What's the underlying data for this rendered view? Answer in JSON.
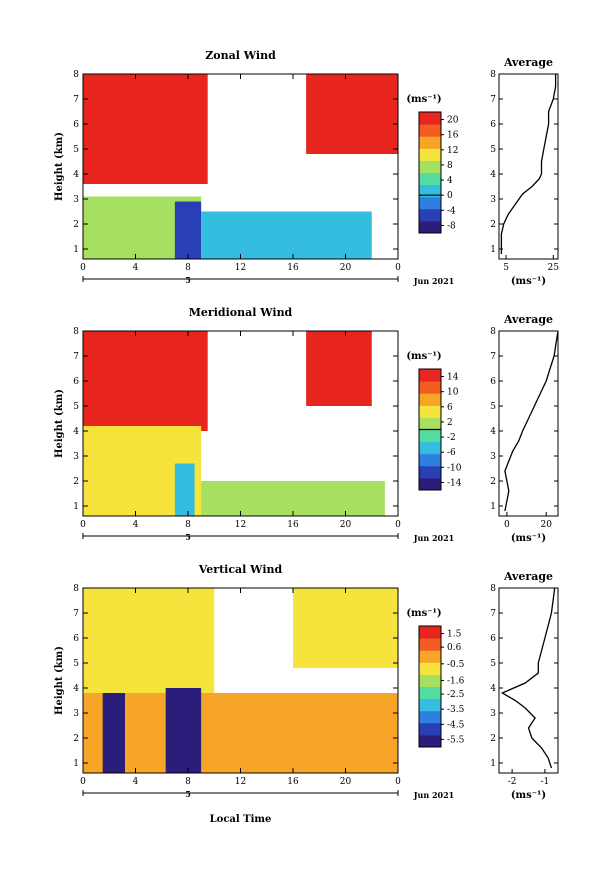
{
  "footer_xlabel": "Local Time",
  "chart_data": [
    {
      "type": "heatmap",
      "title": "Zonal Wind",
      "ylabel": "Height (km)",
      "xlim": [
        0,
        24
      ],
      "ylim": [
        0.6,
        8
      ],
      "x_ticks": [
        "0",
        "4",
        "8",
        "12",
        "16",
        "20",
        "0"
      ],
      "y_ticks": [
        "1",
        "2",
        "3",
        "4",
        "5",
        "6",
        "7",
        "8"
      ],
      "day_label": "5",
      "date_label": "Jun 2021",
      "colorbar": {
        "unit": "(ms⁻¹)",
        "ticks": [
          "20",
          "16",
          "12",
          "8",
          "4",
          "0",
          "-4",
          "-8"
        ],
        "range": [
          -10,
          22
        ],
        "zero_line": 0
      },
      "regions": [
        {
          "hour_start": 0,
          "hour_end": 9.5,
          "height_start": 3.6,
          "height_end": 8,
          "value": 22
        },
        {
          "hour_start": 17,
          "hour_end": 24,
          "height_start": 4.8,
          "height_end": 8,
          "value": 22
        },
        {
          "hour_start": 0,
          "hour_end": 9,
          "height_start": 0.6,
          "height_end": 3.1,
          "value": 6
        },
        {
          "hour_start": 7,
          "hour_end": 9,
          "height_start": 0.6,
          "height_end": 2.9,
          "value": -6
        },
        {
          "hour_start": 9,
          "hour_end": 22,
          "height_start": 0.6,
          "height_end": 2.5,
          "value": 2
        }
      ],
      "profile": {
        "title": "Average",
        "xlabel": "(ms⁻¹)",
        "x_ticks": [
          "5",
          "25"
        ],
        "xlim": [
          2,
          27
        ],
        "heights": [
          0.8,
          1.2,
          1.6,
          2.0,
          2.4,
          2.8,
          3.2,
          3.5,
          3.8,
          4.0,
          4.5,
          5.0,
          5.5,
          6.0,
          6.5,
          7.0,
          7.5,
          8.0
        ],
        "values": [
          3,
          3,
          3,
          4,
          6,
          9,
          12,
          16,
          19,
          20,
          20,
          21,
          22,
          23,
          23,
          25,
          26,
          26
        ]
      }
    },
    {
      "type": "heatmap",
      "title": "Meridional Wind",
      "ylabel": "Height (km)",
      "xlim": [
        0,
        24
      ],
      "ylim": [
        0.6,
        8
      ],
      "x_ticks": [
        "0",
        "4",
        "8",
        "12",
        "16",
        "20",
        "0"
      ],
      "y_ticks": [
        "1",
        "2",
        "3",
        "4",
        "5",
        "6",
        "7",
        "8"
      ],
      "day_label": "5",
      "date_label": "Jun 2021",
      "colorbar": {
        "unit": "(ms⁻¹)",
        "ticks": [
          "14",
          "10",
          "6",
          "2",
          "-2",
          "-6",
          "-10",
          "-14"
        ],
        "range": [
          -16,
          16
        ],
        "zero_line": 0
      },
      "regions": [
        {
          "hour_start": 0,
          "hour_end": 9.5,
          "height_start": 4.0,
          "height_end": 8,
          "value": 16
        },
        {
          "hour_start": 17,
          "hour_end": 22,
          "height_start": 5.0,
          "height_end": 8,
          "value": 16
        },
        {
          "hour_start": 0,
          "hour_end": 9,
          "height_start": 0.6,
          "height_end": 4.2,
          "value": 4
        },
        {
          "hour_start": 7,
          "hour_end": 8.5,
          "height_start": 0.6,
          "height_end": 2.7,
          "value": -4
        },
        {
          "hour_start": 9,
          "hour_end": 23,
          "height_start": 0.6,
          "height_end": 2.0,
          "value": 0
        }
      ],
      "profile": {
        "title": "Average",
        "xlabel": "(ms⁻¹)",
        "x_ticks": [
          "0",
          "20"
        ],
        "xlim": [
          -4,
          26
        ],
        "heights": [
          0.8,
          1.2,
          1.6,
          2.0,
          2.4,
          2.8,
          3.2,
          3.6,
          4.0,
          4.5,
          5.0,
          5.5,
          6.0,
          6.5,
          7.0,
          7.5,
          8.0
        ],
        "values": [
          -1,
          0,
          1,
          0,
          -1,
          1,
          3,
          6,
          8,
          11,
          14,
          17,
          20,
          22,
          24,
          25,
          26
        ]
      }
    },
    {
      "type": "heatmap",
      "title": "Vertical Wind",
      "ylabel": "Height (km)",
      "xlim": [
        0,
        24
      ],
      "ylim": [
        0.6,
        8
      ],
      "x_ticks": [
        "0",
        "4",
        "8",
        "12",
        "16",
        "20",
        "0"
      ],
      "y_ticks": [
        "1",
        "2",
        "3",
        "4",
        "5",
        "6",
        "7",
        "8"
      ],
      "day_label": "5",
      "date_label": "Jun 2021",
      "colorbar": {
        "unit": "(ms⁻¹)",
        "ticks": [
          "1.5",
          "0.6",
          "-0.5",
          "-1.6",
          "-2.5",
          "-3.5",
          "-4.5",
          "-5.5"
        ],
        "range": [
          -6,
          2
        ],
        "zero_line": null
      },
      "regions": [
        {
          "hour_start": 0,
          "hour_end": 10,
          "height_start": 3.8,
          "height_end": 8,
          "value": -1.2
        },
        {
          "hour_start": 16,
          "hour_end": 24,
          "height_start": 4.8,
          "height_end": 8,
          "value": -1.2
        },
        {
          "hour_start": 0,
          "hour_end": 24,
          "height_start": 0.6,
          "height_end": 3.8,
          "value": 0.3
        },
        {
          "hour_start": 1.5,
          "hour_end": 3.2,
          "height_start": 0.6,
          "height_end": 3.8,
          "value": -5.5
        },
        {
          "hour_start": 6.3,
          "hour_end": 9,
          "height_start": 0.6,
          "height_end": 4.0,
          "value": -5.5
        }
      ],
      "profile": {
        "title": "Average",
        "xlabel": "(ms⁻¹)",
        "x_ticks": [
          "-2",
          "-1"
        ],
        "xlim": [
          -2.4,
          -0.6
        ],
        "heights": [
          0.8,
          1.2,
          1.6,
          2.0,
          2.4,
          2.8,
          3.2,
          3.5,
          3.8,
          4.2,
          4.6,
          5.0,
          5.5,
          6.0,
          6.5,
          7.0,
          7.5,
          8.0
        ],
        "values": [
          -0.8,
          -0.9,
          -1.1,
          -1.4,
          -1.5,
          -1.3,
          -1.6,
          -1.9,
          -2.3,
          -1.6,
          -1.2,
          -1.2,
          -1.1,
          -1.0,
          -0.9,
          -0.8,
          -0.75,
          -0.7
        ]
      }
    }
  ]
}
